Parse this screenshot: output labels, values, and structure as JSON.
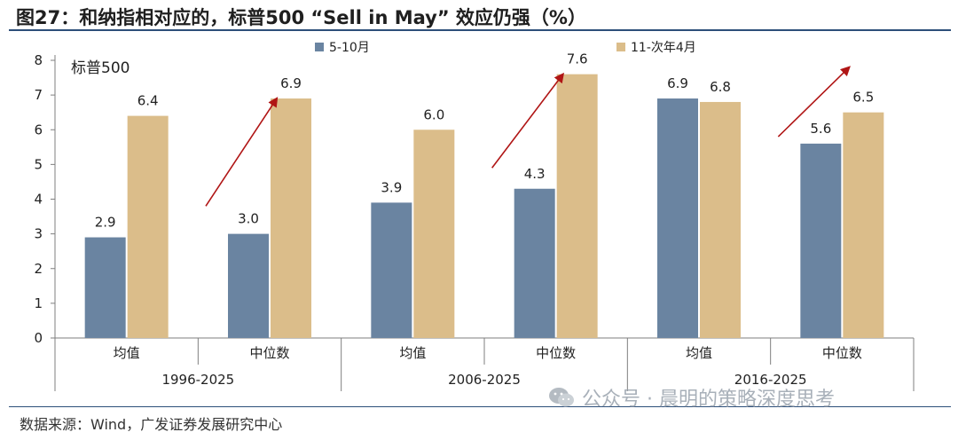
{
  "title": "图27：和纳指相对应的，标普500 “Sell in May” 效应仍强（%）",
  "source": "数据来源：Wind，广发证券发展研究中心",
  "watermark": "公众号 · 晨明的策略深度思考",
  "chart_data": {
    "type": "bar",
    "inner_label": "标普500",
    "ylim": [
      0,
      8
    ],
    "yticks": [
      "0",
      "1",
      "2",
      "3",
      "4",
      "5",
      "6",
      "7",
      "8"
    ],
    "categories": [
      "均值",
      "中位数",
      "均值",
      "中位数",
      "均值",
      "中位数"
    ],
    "groups": [
      {
        "label": "1996-2025",
        "span": [
          0,
          1
        ]
      },
      {
        "label": "2006-2025",
        "span": [
          2,
          3
        ]
      },
      {
        "label": "2016-2025",
        "span": [
          4,
          5
        ]
      }
    ],
    "series": [
      {
        "name": "5-10月",
        "color": "#6a84a1",
        "values": [
          2.9,
          3.0,
          3.9,
          4.3,
          6.9,
          5.6
        ],
        "labels": [
          "2.9",
          "3.0",
          "3.9",
          "4.3",
          "6.9",
          "5.6"
        ]
      },
      {
        "name": "11-次年4月",
        "color": "#dbbd8a",
        "values": [
          6.4,
          6.9,
          6.0,
          7.6,
          6.8,
          6.5
        ],
        "labels": [
          "6.4",
          "6.9",
          "6.0",
          "7.6",
          "6.8",
          "6.5"
        ]
      }
    ],
    "legend": "top-center",
    "annotations": [
      {
        "type": "arrow",
        "category_index": 1,
        "color": "#b01515",
        "from_value": 3.8,
        "to_value": 6.9
      },
      {
        "type": "arrow",
        "category_index": 3,
        "color": "#b01515",
        "from_value": 4.9,
        "to_value": 7.6
      },
      {
        "type": "arrow",
        "category_index": 5,
        "color": "#b01515",
        "from_value": 5.8,
        "to_value": 7.8
      }
    ]
  }
}
